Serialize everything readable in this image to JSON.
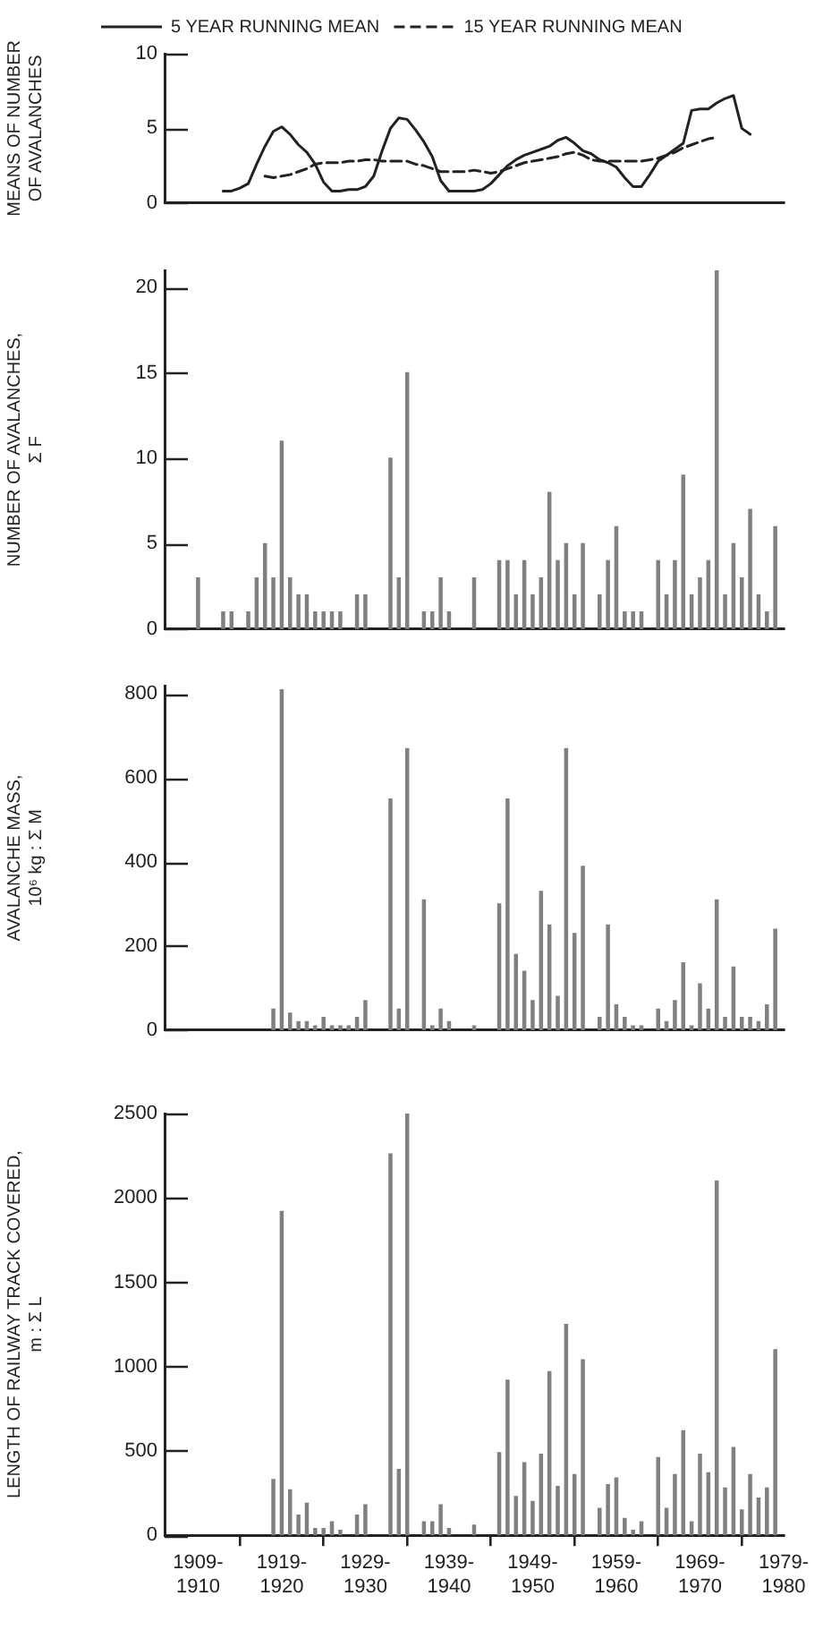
{
  "chart_data": [
    {
      "type": "line",
      "ylabel": "MEANS OF NUMBER OF AVALANCHES",
      "ylim": [
        0,
        10
      ],
      "yticks": [
        0,
        5,
        10
      ],
      "tick_labels": "y",
      "legend": "top",
      "categories": [
        null,
        null,
        null,
        null,
        null,
        null,
        null,
        null,
        null,
        null,
        null,
        null,
        null,
        null,
        null,
        null,
        null,
        null,
        null,
        null,
        null,
        null,
        null,
        null,
        null,
        null,
        null,
        null,
        null,
        null,
        null,
        null,
        null,
        null,
        null,
        null,
        null,
        null,
        null,
        null,
        null,
        null,
        null,
        null,
        null,
        null,
        null,
        null,
        null,
        null,
        null,
        null,
        null,
        null,
        null,
        null,
        null,
        null,
        null,
        null,
        null,
        null,
        null,
        null,
        null,
        null,
        null,
        null,
        null,
        null,
        null,
        null,
        null,
        null,
        null
      ],
      "series": [
        {
          "name": "5 YEAR RUNNING MEAN",
          "color": "#222222",
          "line_style": "solid",
          "values": [
            null,
            null,
            null,
            null,
            null,
            null,
            null,
            0.8,
            0.8,
            1.0,
            1.3,
            2.6,
            3.8,
            4.8,
            5.1,
            4.6,
            3.9,
            3.4,
            2.6,
            1.4,
            0.8,
            0.8,
            0.9,
            0.9,
            1.1,
            1.8,
            3.5,
            5.0,
            5.7,
            5.6,
            4.9,
            4.1,
            3.1,
            1.5,
            0.8,
            0.8,
            0.8,
            0.8,
            0.9,
            1.3,
            1.9,
            2.5,
            2.9,
            3.2,
            3.4,
            3.6,
            3.8,
            4.2,
            4.4,
            4.0,
            3.5,
            3.3,
            2.9,
            2.7,
            2.4,
            1.7,
            1.1,
            1.1,
            1.9,
            2.8,
            3.2,
            3.6,
            4.0,
            6.2,
            6.3,
            6.3,
            6.7,
            7.0,
            7.2,
            5.0,
            4.6,
            null,
            null,
            null,
            null
          ]
        },
        {
          "name": "15 YEAR RUNNING MEAN",
          "color": "#222222",
          "line_style": "dashed",
          "values": [
            null,
            null,
            null,
            null,
            null,
            null,
            null,
            null,
            null,
            null,
            null,
            null,
            1.8,
            1.7,
            1.8,
            1.9,
            2.1,
            2.3,
            2.6,
            2.7,
            2.7,
            2.7,
            2.8,
            2.8,
            2.9,
            2.9,
            2.8,
            2.8,
            2.8,
            2.8,
            2.6,
            2.5,
            2.3,
            2.1,
            2.1,
            2.1,
            2.1,
            2.2,
            2.1,
            2.0,
            2.1,
            2.3,
            2.5,
            2.7,
            2.8,
            2.9,
            3.0,
            3.1,
            3.3,
            3.4,
            3.2,
            2.9,
            2.8,
            2.8,
            2.8,
            2.8,
            2.8,
            2.8,
            2.9,
            3.0,
            3.2,
            3.4,
            3.7,
            3.9,
            4.1,
            4.3,
            4.4,
            null,
            null,
            null,
            null,
            null,
            null,
            null,
            null
          ]
        }
      ]
    },
    {
      "type": "bar",
      "ylabel": "NUMBER OF AVALANCHES, Σ F",
      "ylim": [
        0,
        21
      ],
      "yticks": [
        0,
        5,
        10,
        15,
        20
      ],
      "tick_labels": "y",
      "color": "#808080",
      "categories": [
        null,
        null,
        null,
        null,
        null,
        null,
        null,
        null,
        null,
        null,
        null,
        null,
        null,
        null,
        null,
        null,
        null,
        null,
        null,
        null,
        null,
        null,
        null,
        null,
        null,
        null,
        null,
        null,
        null,
        null,
        null,
        null,
        null,
        null,
        null,
        null,
        null,
        null,
        null,
        null,
        null,
        null,
        null,
        null,
        null,
        null,
        null,
        null,
        null,
        null,
        null,
        null,
        null,
        null,
        null,
        null,
        null,
        null,
        null,
        null,
        null,
        null,
        null,
        null,
        null,
        null,
        null,
        null,
        null,
        null,
        null,
        null,
        null,
        null,
        null
      ],
      "values": [
        null,
        null,
        null,
        null,
        3,
        null,
        null,
        1,
        1,
        null,
        1,
        3,
        5,
        3,
        11,
        3,
        2,
        2,
        1,
        1,
        1,
        1,
        null,
        2,
        2,
        null,
        null,
        10,
        3,
        15,
        null,
        1,
        1,
        3,
        1,
        null,
        null,
        3,
        null,
        null,
        4,
        4,
        2,
        4,
        2,
        3,
        8,
        4,
        5,
        2,
        5,
        null,
        2,
        4,
        6,
        1,
        1,
        1,
        null,
        4,
        2,
        4,
        9,
        2,
        3,
        4,
        21,
        2,
        5,
        3,
        7,
        2,
        1,
        6,
        null
      ]
    },
    {
      "type": "bar",
      "ylabel": "AVALANCHE MASS, 10⁶ kg : Σ M",
      "ylim": [
        0,
        820
      ],
      "yticks": [
        0,
        200,
        400,
        600,
        800
      ],
      "tick_labels": "y",
      "color": "#808080",
      "categories": [
        null,
        null,
        null,
        null,
        null,
        null,
        null,
        null,
        null,
        null,
        null,
        null,
        null,
        null,
        null,
        null,
        null,
        null,
        null,
        null,
        null,
        null,
        null,
        null,
        null,
        null,
        null,
        null,
        null,
        null,
        null,
        null,
        null,
        null,
        null,
        null,
        null,
        null,
        null,
        null,
        null,
        null,
        null,
        null,
        null,
        null,
        null,
        null,
        null,
        null,
        null,
        null,
        null,
        null,
        null,
        null,
        null,
        null,
        null,
        null,
        null,
        null,
        null,
        null,
        null,
        null,
        null,
        null,
        null,
        null,
        null,
        null,
        null,
        null,
        null
      ],
      "values": [
        null,
        null,
        null,
        null,
        null,
        null,
        null,
        null,
        null,
        null,
        null,
        null,
        null,
        50,
        810,
        40,
        20,
        20,
        10,
        30,
        10,
        10,
        10,
        30,
        70,
        null,
        null,
        550,
        50,
        670,
        null,
        310,
        10,
        50,
        20,
        null,
        null,
        10,
        null,
        null,
        300,
        550,
        180,
        140,
        70,
        330,
        250,
        80,
        670,
        230,
        390,
        null,
        30,
        250,
        60,
        30,
        10,
        10,
        null,
        50,
        20,
        70,
        160,
        10,
        110,
        50,
        310,
        30,
        150,
        30,
        30,
        20,
        60,
        240,
        null
      ]
    },
    {
      "type": "bar",
      "ylabel": "LENGTH OF RAILWAY TRACK COVERED, m : Σ L",
      "ylim": [
        0,
        2500
      ],
      "yticks": [
        0,
        500,
        1000,
        1500,
        2000,
        2500
      ],
      "color": "#808080",
      "categories": [
        null,
        null,
        null,
        null,
        "1909-1910",
        null,
        null,
        null,
        null,
        null,
        null,
        null,
        null,
        null,
        "1919-1920",
        null,
        null,
        null,
        null,
        null,
        null,
        null,
        null,
        null,
        "1929-1930",
        null,
        null,
        null,
        null,
        null,
        null,
        null,
        null,
        null,
        "1939-1940",
        null,
        null,
        null,
        null,
        null,
        null,
        null,
        null,
        null,
        "1949-1950",
        null,
        null,
        null,
        null,
        null,
        null,
        null,
        null,
        null,
        "1959-1960",
        null,
        null,
        null,
        null,
        null,
        null,
        null,
        null,
        null,
        "1969-1970",
        null,
        null,
        null,
        null,
        null,
        null,
        null,
        null,
        null,
        "1979-1980"
      ],
      "values": [
        null,
        null,
        null,
        null,
        null,
        null,
        null,
        null,
        null,
        null,
        null,
        null,
        null,
        330,
        1920,
        270,
        120,
        190,
        40,
        40,
        80,
        30,
        null,
        120,
        180,
        null,
        null,
        2260,
        390,
        2500,
        null,
        80,
        80,
        180,
        40,
        null,
        null,
        60,
        null,
        null,
        490,
        920,
        230,
        430,
        200,
        480,
        970,
        290,
        1250,
        360,
        1040,
        null,
        160,
        300,
        340,
        100,
        30,
        80,
        null,
        460,
        160,
        360,
        620,
        80,
        480,
        370,
        2100,
        280,
        520,
        150,
        360,
        220,
        280,
        1100,
        null
      ]
    }
  ]
}
